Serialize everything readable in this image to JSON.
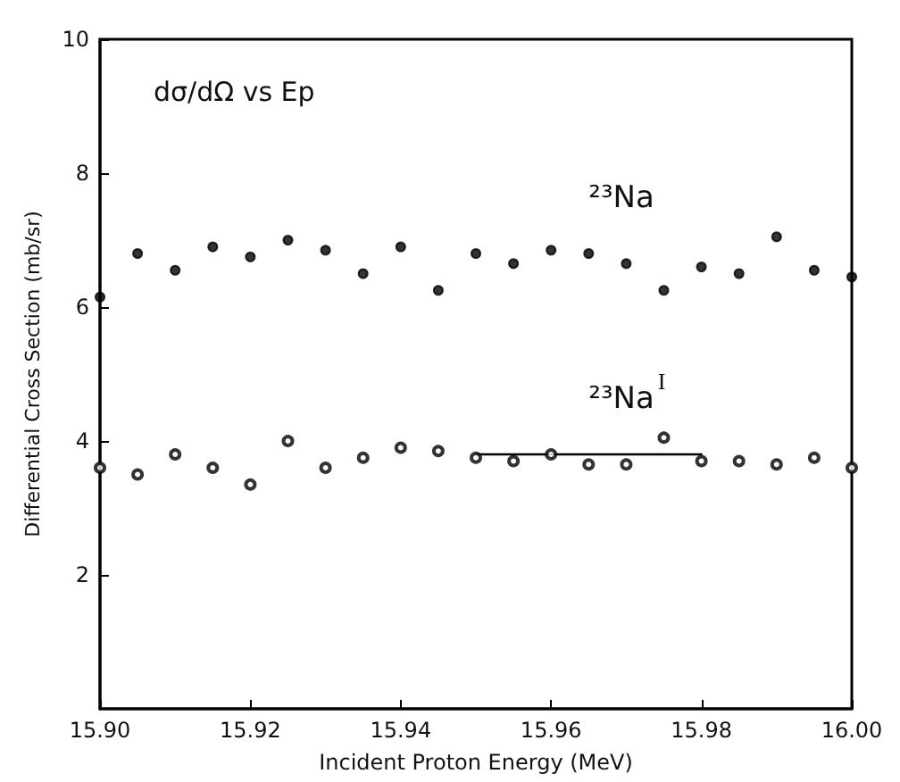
{
  "chart_data": {
    "type": "scatter",
    "title": "dσ/dΩ vs Ep",
    "xlabel": "Incident Proton Energy (MeV)",
    "ylabel": "Differential Cross Section (mb/sr)",
    "x": [
      15.9,
      15.905,
      15.91,
      15.915,
      15.92,
      15.925,
      15.93,
      15.935,
      15.94,
      15.945,
      15.95,
      15.955,
      15.96,
      15.965,
      15.97,
      15.975,
      15.98,
      15.985,
      15.99,
      15.995,
      16.0
    ],
    "series": [
      {
        "name": "²³Na",
        "color": "#000000",
        "marker": "circle",
        "values": [
          6.15,
          6.8,
          6.55,
          6.9,
          6.75,
          7.0,
          6.85,
          6.5,
          6.9,
          6.25,
          6.8,
          6.65,
          6.85,
          6.8,
          6.65,
          6.25,
          6.6,
          6.5,
          7.05,
          6.55,
          6.45
        ]
      },
      {
        "name": "²³Na$^{I}$",
        "color": "#000000",
        "marker": "open circle",
        "values": [
          3.6,
          3.5,
          3.8,
          3.6,
          3.35,
          4.0,
          3.6,
          3.75,
          3.9,
          3.85,
          3.75,
          3.7,
          3.8,
          3.65,
          3.65,
          4.05,
          3.7,
          3.7,
          3.65,
          3.75,
          3.6
        ]
      },
      {
        "type": "line",
        "color": "#000000",
        "marker": "none",
        "x": [
          15.95,
          15.98
        ],
        "values": [
          3.8,
          3.8
        ]
      }
    ],
    "xlim": [
      15.9,
      16.0
    ],
    "xticks": [
      {
        "value": 15.9,
        "label": "15.90"
      },
      {
        "value": 15.92,
        "label": "15.92"
      },
      {
        "value": 15.94,
        "label": "15.94"
      },
      {
        "value": 15.96,
        "label": "15.96"
      },
      {
        "value": 15.98,
        "label": "15.98"
      },
      {
        "value": 16.0,
        "label": "16.00"
      }
    ],
    "ylim": [
      0,
      10
    ],
    "yticks": [
      2,
      4,
      6,
      8,
      10
    ],
    "grid": false
  }
}
